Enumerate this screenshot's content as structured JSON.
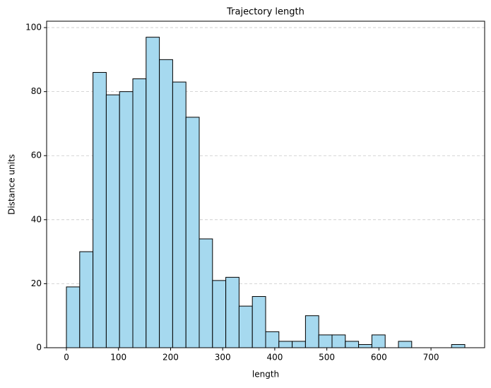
{
  "chart_data": {
    "type": "histogram",
    "title": "Trajectory length",
    "x_label": "length",
    "y_label": "Distance units",
    "bins": [
      0,
      25.5,
      51,
      76.5,
      102,
      127.5,
      153,
      178.5,
      204,
      229.5,
      255,
      280.5,
      306,
      331.5,
      357,
      382.5,
      408,
      433.5,
      459,
      484.5,
      510,
      535.5,
      561,
      586.5,
      612,
      637.5,
      663,
      688.5,
      714,
      739.5,
      765
    ],
    "values": [
      19,
      30,
      86,
      79,
      80,
      84,
      97,
      90,
      83,
      72,
      34,
      21,
      22,
      13,
      16,
      5,
      2,
      2,
      10,
      4,
      4,
      2,
      1,
      4,
      0,
      2,
      0,
      0,
      0,
      1
    ],
    "color": "#a6d9ef",
    "edgecolor": "#000000",
    "xlim": [
      -38,
      803
    ],
    "xticks": [
      0,
      100,
      200,
      300,
      400,
      500,
      600,
      700
    ],
    "ylim": [
      0,
      102
    ],
    "yticks": [
      0,
      20,
      40,
      60,
      80,
      100
    ],
    "grid": true
  }
}
